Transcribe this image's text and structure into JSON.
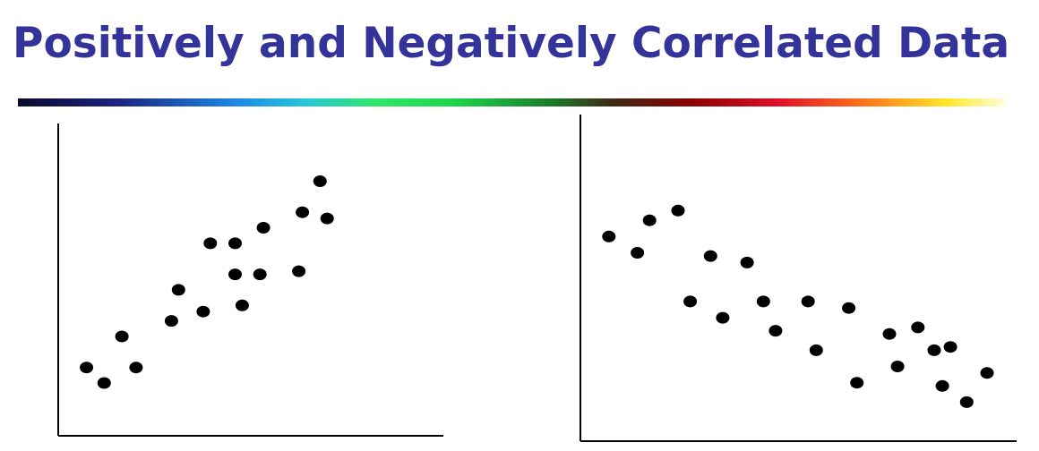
{
  "slide": {
    "title": "Positively and Negatively Correlated Data"
  },
  "colors": {
    "title": "#333399",
    "points": "#000000"
  },
  "chart_data": [
    {
      "type": "scatter",
      "title": "",
      "xlabel": "",
      "ylabel": "",
      "grid": false,
      "xlim": [
        0,
        10
      ],
      "ylim": [
        0,
        10
      ],
      "series": [
        {
          "x": [
            0.8,
            1.3,
            1.8,
            2.2,
            3.2,
            3.4,
            4.1,
            4.3,
            5.0,
            5.0,
            5.2,
            5.7,
            5.8,
            6.8,
            6.9,
            7.4,
            7.6
          ],
          "y": [
            2.2,
            1.7,
            3.2,
            2.2,
            3.7,
            4.7,
            4.0,
            6.2,
            6.2,
            5.2,
            4.2,
            5.2,
            6.7,
            5.3,
            7.2,
            8.2,
            7.0
          ]
        }
      ]
    },
    {
      "type": "scatter",
      "title": "",
      "xlabel": "",
      "ylabel": "",
      "grid": false,
      "xlim": [
        0,
        10
      ],
      "ylim": [
        0,
        10
      ],
      "series": [
        {
          "x": [
            0.7,
            1.4,
            1.7,
            2.4,
            2.7,
            3.2,
            3.5,
            4.1,
            4.5,
            4.8,
            5.6,
            5.8,
            6.6,
            6.8,
            7.6,
            7.8,
            8.3,
            8.7,
            8.9,
            9.1,
            9.5,
            10.0
          ],
          "y": [
            6.3,
            5.8,
            6.8,
            7.1,
            4.3,
            5.7,
            3.8,
            5.5,
            4.3,
            3.4,
            4.3,
            2.8,
            4.1,
            1.8,
            3.3,
            2.3,
            3.5,
            2.8,
            1.7,
            2.9,
            1.2,
            2.1
          ]
        }
      ]
    }
  ]
}
